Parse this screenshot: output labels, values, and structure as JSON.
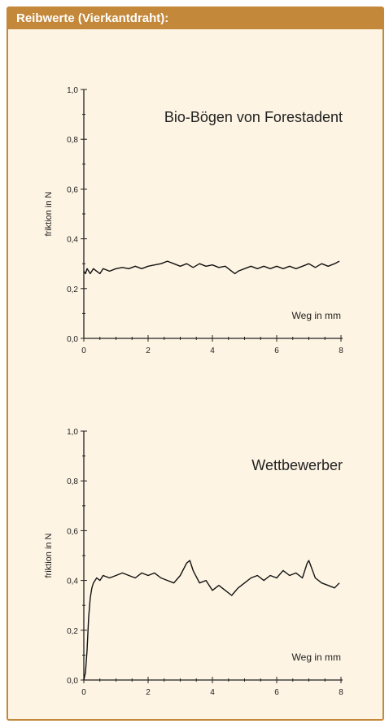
{
  "header": {
    "title": "Reibwerte (Vierkantdraht):"
  },
  "colors": {
    "accent": "#c4883a",
    "panel_background": "#fdf4e3",
    "line": "#111111"
  },
  "chart_data": [
    {
      "type": "line",
      "title": "Bio-Bögen von Forestadent",
      "xlabel": "Weg in mm",
      "ylabel": "friktion in N",
      "xlim": [
        0,
        8
      ],
      "ylim": [
        0,
        1.0
      ],
      "xticks": [
        "0",
        "2",
        "4",
        "6",
        "8"
      ],
      "yticks": [
        "0,0",
        "0,2",
        "0,4",
        "0,6",
        "0,8",
        "1,0"
      ],
      "grid": false,
      "series": [
        {
          "x": [
            0,
            0.05,
            0.1,
            0.2,
            0.3,
            0.4,
            0.5,
            0.6,
            0.8,
            1.0,
            1.2,
            1.4,
            1.6,
            1.8,
            2.0,
            2.2,
            2.4,
            2.6,
            2.8,
            3.0,
            3.2,
            3.4,
            3.6,
            3.8,
            4.0,
            4.2,
            4.4,
            4.6,
            4.7,
            4.8,
            5.0,
            5.2,
            5.4,
            5.6,
            5.8,
            6.0,
            6.2,
            6.4,
            6.6,
            6.8,
            7.0,
            7.2,
            7.4,
            7.6,
            7.8,
            7.95
          ],
          "y": [
            0.27,
            0.26,
            0.28,
            0.26,
            0.28,
            0.27,
            0.26,
            0.28,
            0.27,
            0.28,
            0.285,
            0.28,
            0.29,
            0.28,
            0.29,
            0.295,
            0.3,
            0.31,
            0.3,
            0.29,
            0.3,
            0.285,
            0.3,
            0.29,
            0.295,
            0.285,
            0.29,
            0.27,
            0.26,
            0.27,
            0.28,
            0.29,
            0.28,
            0.29,
            0.28,
            0.29,
            0.28,
            0.29,
            0.28,
            0.29,
            0.3,
            0.285,
            0.3,
            0.29,
            0.3,
            0.31
          ]
        }
      ]
    },
    {
      "type": "line",
      "title": "Wettbewerber",
      "xlabel": "Weg in mm",
      "ylabel": "friktion in N",
      "xlim": [
        0,
        8
      ],
      "ylim": [
        0,
        1.0
      ],
      "xticks": [
        "0",
        "2",
        "4",
        "6",
        "8"
      ],
      "yticks": [
        "0,0",
        "0,2",
        "0,4",
        "0,6",
        "0,8",
        "1,0"
      ],
      "grid": false,
      "series": [
        {
          "x": [
            0,
            0.05,
            0.1,
            0.15,
            0.2,
            0.25,
            0.3,
            0.4,
            0.5,
            0.6,
            0.8,
            1.0,
            1.2,
            1.4,
            1.6,
            1.8,
            2.0,
            2.2,
            2.4,
            2.6,
            2.8,
            3.0,
            3.2,
            3.3,
            3.4,
            3.6,
            3.8,
            4.0,
            4.2,
            4.4,
            4.6,
            4.8,
            5.0,
            5.2,
            5.4,
            5.6,
            5.8,
            6.0,
            6.2,
            6.4,
            6.6,
            6.8,
            6.95,
            7.0,
            7.2,
            7.4,
            7.6,
            7.8,
            7.95
          ],
          "y": [
            0.0,
            0.03,
            0.12,
            0.25,
            0.33,
            0.37,
            0.39,
            0.41,
            0.4,
            0.42,
            0.41,
            0.42,
            0.43,
            0.42,
            0.41,
            0.43,
            0.42,
            0.43,
            0.41,
            0.4,
            0.39,
            0.42,
            0.47,
            0.48,
            0.44,
            0.39,
            0.4,
            0.36,
            0.38,
            0.36,
            0.34,
            0.37,
            0.39,
            0.41,
            0.42,
            0.4,
            0.42,
            0.41,
            0.44,
            0.42,
            0.43,
            0.41,
            0.47,
            0.48,
            0.41,
            0.39,
            0.38,
            0.37,
            0.39
          ]
        }
      ]
    }
  ]
}
